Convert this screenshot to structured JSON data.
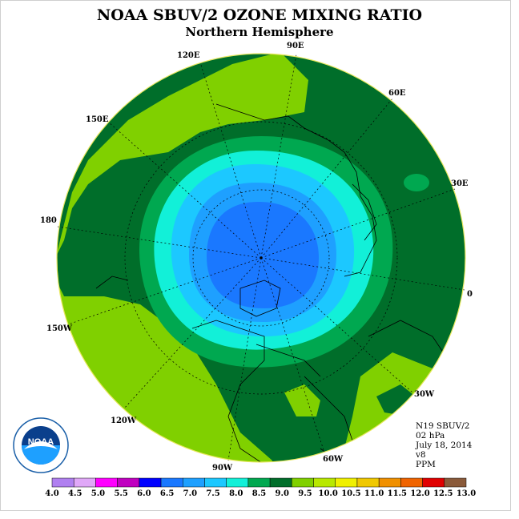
{
  "header": {
    "title": "NOAA SBUV/2 OZONE MIXING RATIO",
    "subtitle": "Northern Hemisphere"
  },
  "info": {
    "satellite": "N19 SBUV/2",
    "pressure": "02 hPa",
    "date": "July 18, 2014",
    "version": "v8",
    "units": "PPM"
  },
  "map": {
    "projection": "north-polar-stereographic",
    "longitude_labels": [
      "90E",
      "60E",
      "30E",
      "0",
      "30W",
      "60W",
      "90W",
      "120W",
      "150W",
      "180",
      "150E",
      "120E"
    ]
  },
  "legend": {
    "ticks": [
      "4.0",
      "4.5",
      "5.0",
      "5.5",
      "6.0",
      "6.5",
      "7.0",
      "7.5",
      "8.0",
      "8.5",
      "9.0",
      "9.5",
      "10.0",
      "10.5",
      "11.0",
      "11.5",
      "12.0",
      "12.5",
      "13.0"
    ],
    "colors": [
      "#b080f0",
      "#e0a8f8",
      "#ff00ff",
      "#c000c0",
      "#0000ff",
      "#1a78ff",
      "#1ea0ff",
      "#1cc8ff",
      "#12f0d8",
      "#00a850",
      "#006e2a",
      "#80d000",
      "#b8e800",
      "#f0f000",
      "#f0c800",
      "#f09000",
      "#f06400",
      "#e00000",
      "#8a5a3a"
    ]
  },
  "logo": {
    "text": "NOAA",
    "ring_text": "NATIONAL OCEANIC AND ATMOSPHERIC ADMINISTRATION · U.S. DEPARTMENT OF COMMERCE"
  }
}
